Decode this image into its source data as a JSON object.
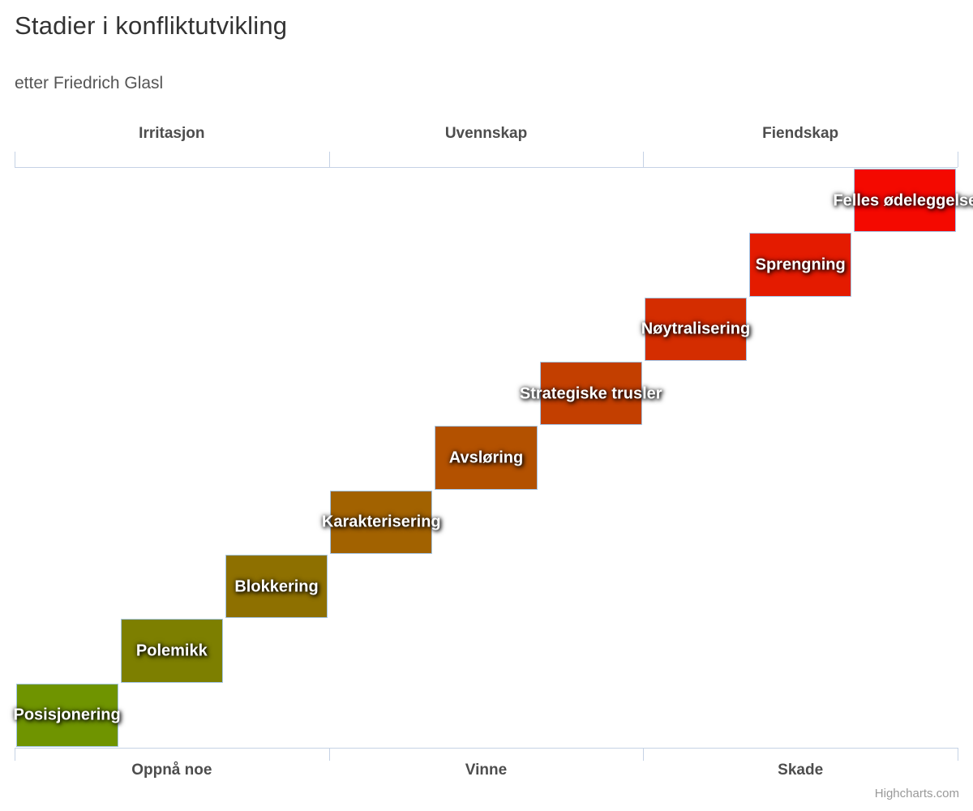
{
  "title": "Stadier i konfliktutvikling",
  "subtitle": "etter Friedrich Glasl",
  "credit": "Highcharts.com",
  "chart_data": {
    "type": "column",
    "title": "Stadier i konfliktutvikling",
    "subtitle": "etter Friedrich Glasl",
    "categories": [
      "Posisjonering",
      "Polemikk",
      "Blokkering",
      "Karakterisering",
      "Avsløring",
      "Strategiske trusler",
      "Nøytralisering",
      "Sprengning",
      "Felles ødeleggelse"
    ],
    "values": [
      1,
      2,
      3,
      4,
      5,
      6,
      7,
      8,
      9
    ],
    "column_base_values": [
      0,
      1,
      2,
      3,
      4,
      5,
      6,
      7,
      8
    ],
    "colors": [
      "#6f9400",
      "#7d7f00",
      "#8e7000",
      "#a26200",
      "#b35100",
      "#c33f00",
      "#d42d00",
      "#e41b00",
      "#f40900"
    ],
    "top_axis_categories": [
      "Irritasjon",
      "Uvennskap",
      "Fiendskap"
    ],
    "bottom_axis_categories": [
      "Oppnå noe",
      "Vinne",
      "Skade"
    ],
    "ylim": [
      0,
      9
    ],
    "xlabel": "",
    "ylabel": "",
    "grid": false,
    "legend": false,
    "axis_line_color": "#c5d2e5",
    "bar_border_color": "#a4c6e8",
    "data_label_color": "#ffffff"
  }
}
